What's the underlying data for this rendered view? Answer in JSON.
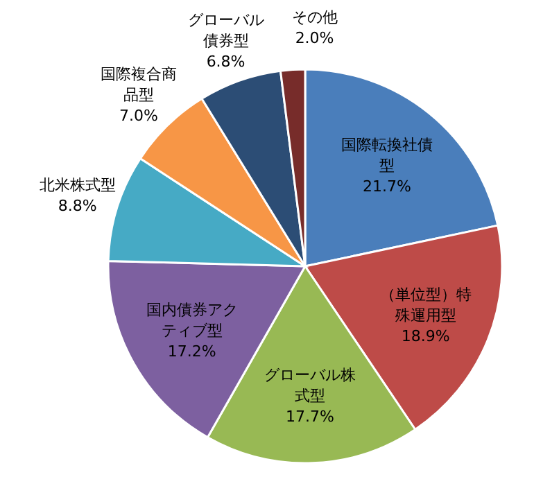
{
  "chart_data": {
    "type": "pie",
    "categories": [
      "国際転換社債型",
      "（単位型）特殊運用型",
      "グローバル株式型",
      "国内債券アクティブ型",
      "北米株式型",
      "国際複合商品型",
      "グローバル債券型",
      "その他"
    ],
    "values": [
      21.7,
      18.9,
      17.7,
      17.2,
      8.8,
      7.0,
      6.8,
      2.0
    ],
    "colors": [
      "#4a7ebb",
      "#be4b48",
      "#98b954",
      "#7d60a0",
      "#46aac5",
      "#f79646",
      "#2c4d75",
      "#772c2a"
    ],
    "value_labels": [
      "21.7%",
      "18.9%",
      "17.7%",
      "17.2%",
      "8.8%",
      "7.0%",
      "6.8%",
      "2.0%"
    ]
  }
}
